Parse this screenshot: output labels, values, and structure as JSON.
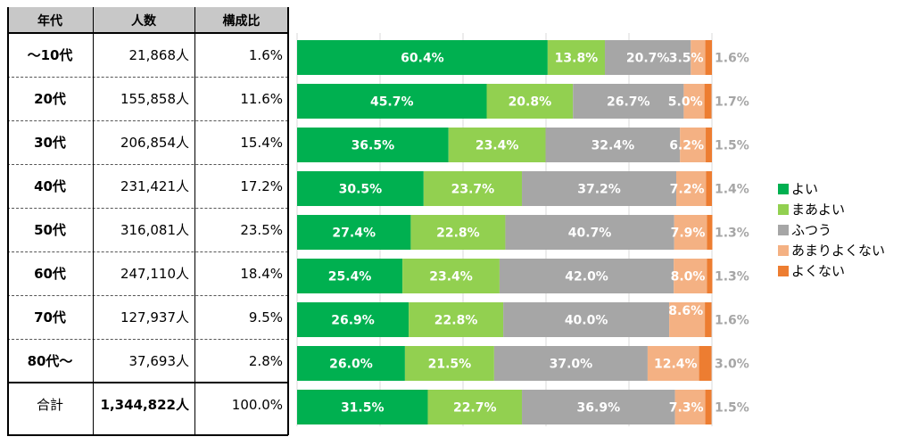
{
  "table": {
    "headers": [
      "年代",
      "人数",
      "構成比"
    ],
    "rows": [
      {
        "age": "～10代",
        "count": "21,868人",
        "ratio": "1.6%"
      },
      {
        "age": "20代",
        "count": "155,858人",
        "ratio": "11.6%"
      },
      {
        "age": "30代",
        "count": "206,854人",
        "ratio": "15.4%"
      },
      {
        "age": "40代",
        "count": "231,421人",
        "ratio": "17.2%"
      },
      {
        "age": "50代",
        "count": "316,081人",
        "ratio": "23.5%"
      },
      {
        "age": "60代",
        "count": "247,110人",
        "ratio": "18.4%"
      },
      {
        "age": "70代",
        "count": "127,937人",
        "ratio": "9.5%"
      },
      {
        "age": "80代～",
        "count": "37,693人",
        "ratio": "2.8%"
      }
    ],
    "total": {
      "age": "合計",
      "count": "1,344,822人",
      "ratio": "100.0%"
    }
  },
  "chart_data": {
    "type": "bar",
    "stacked": "100%",
    "orientation": "horizontal",
    "categories": [
      "～10代",
      "20代",
      "30代",
      "40代",
      "50代",
      "60代",
      "70代",
      "80代～",
      "合計"
    ],
    "series": [
      {
        "name": "よい",
        "color": "#00b050",
        "values": [
          60.4,
          45.7,
          36.5,
          30.5,
          27.4,
          25.4,
          26.9,
          26.0,
          31.5
        ]
      },
      {
        "name": "まあよい",
        "color": "#92d050",
        "values": [
          13.8,
          20.8,
          23.4,
          23.7,
          22.8,
          23.4,
          22.8,
          21.5,
          22.7
        ]
      },
      {
        "name": "ふつう",
        "color": "#a6a6a6",
        "values": [
          20.7,
          26.7,
          32.4,
          37.2,
          40.7,
          42.0,
          40.0,
          37.0,
          36.9
        ]
      },
      {
        "name": "あまりよくない",
        "color": "#f4b183",
        "values": [
          3.5,
          5.0,
          6.2,
          7.2,
          7.9,
          8.0,
          8.6,
          12.4,
          7.3
        ]
      },
      {
        "name": "よくない",
        "color": "#ed7d31",
        "values": [
          1.6,
          1.7,
          1.5,
          1.4,
          1.3,
          1.3,
          1.6,
          3.0,
          1.5
        ]
      }
    ],
    "xlim": [
      0,
      100
    ],
    "grid": true,
    "legend_position": "right"
  }
}
